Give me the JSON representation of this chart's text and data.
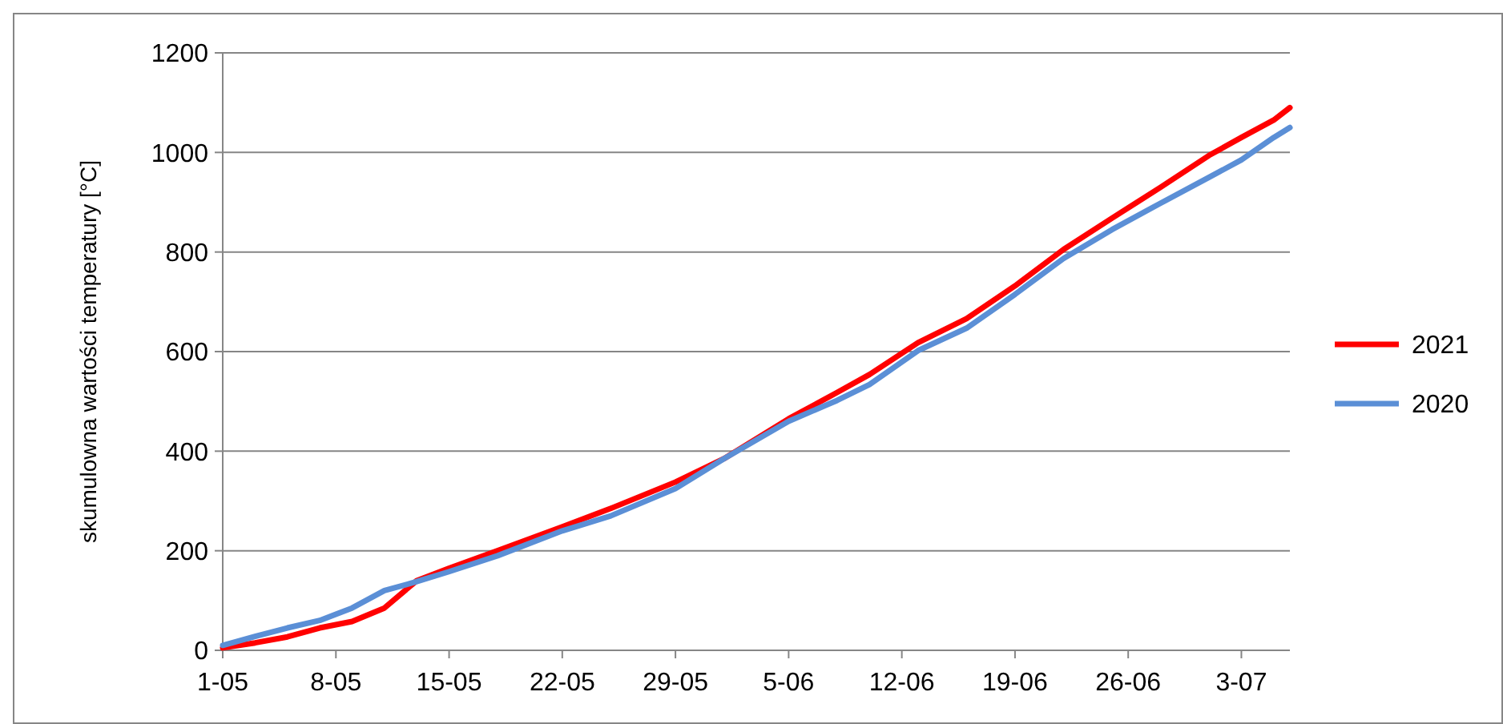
{
  "chart_data": {
    "type": "line",
    "ylabel": "skumulowna wartości temperatury [°C]",
    "x": [
      "--05-01",
      "--05-03",
      "--05-05",
      "--05-07",
      "--05-09",
      "--05-11",
      "--05-13",
      "--05-15",
      "--05-18",
      "--05-22",
      "--05-25",
      "--05-29",
      "--06-01",
      "--06-05",
      "--06-08",
      "--06-10",
      "--06-13",
      "--06-16",
      "--06-19",
      "--06-22",
      "--06-25",
      "--06-28",
      "--07-01",
      "--07-03",
      "--07-05",
      "--07-06"
    ],
    "series": [
      {
        "name": "2021",
        "color": "#ff0000",
        "values": [
          5,
          15,
          27,
          45,
          58,
          85,
          140,
          165,
          200,
          248,
          285,
          338,
          385,
          465,
          518,
          554,
          618,
          666,
          732,
          805,
          868,
          930,
          994,
          1030,
          1065,
          1090
        ]
      },
      {
        "name": "2020",
        "color": "#5b8fd6",
        "values": [
          10,
          28,
          45,
          60,
          85,
          120,
          138,
          158,
          190,
          240,
          270,
          325,
          385,
          460,
          502,
          534,
          602,
          647,
          715,
          787,
          845,
          898,
          950,
          985,
          1030,
          1050
        ]
      }
    ],
    "xlim": [
      "--05-01",
      "--07-06"
    ],
    "xticks": [
      {
        "value": "--05-01",
        "label": "1-05"
      },
      {
        "value": "--05-08",
        "label": "8-05"
      },
      {
        "value": "--05-15",
        "label": "15-05"
      },
      {
        "value": "--05-22",
        "label": "22-05"
      },
      {
        "value": "--05-29",
        "label": "29-05"
      },
      {
        "value": "--06-05",
        "label": "5-06"
      },
      {
        "value": "--06-12",
        "label": "12-06"
      },
      {
        "value": "--06-19",
        "label": "19-06"
      },
      {
        "value": "--06-26",
        "label": "26-06"
      },
      {
        "value": "--07-03",
        "label": "3-07"
      }
    ],
    "ylim": [
      0,
      1200
    ],
    "yticks": [
      0,
      200,
      400,
      600,
      800,
      1000,
      1200
    ],
    "grid": "y",
    "legend": "right",
    "marker": "none",
    "line_style": "solid"
  }
}
